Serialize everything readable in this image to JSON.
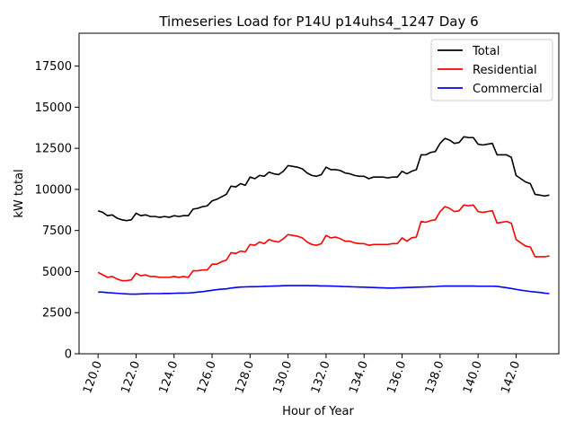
{
  "chart_data": {
    "type": "line",
    "title": "Timeseries Load for P14U p14uhs4_1247  Day 6",
    "xlabel": "Hour of Year",
    "ylabel": "kW total",
    "xlim": [
      119.0,
      144.25
    ],
    "ylim": [
      0,
      19500
    ],
    "xticks": [
      120,
      122,
      124,
      126,
      128,
      130,
      132,
      134,
      136,
      138,
      140,
      142
    ],
    "xtick_labels": [
      "120.0",
      "122.0",
      "124.0",
      "126.0",
      "128.0",
      "130.0",
      "132.0",
      "134.0",
      "136.0",
      "138.0",
      "140.0",
      "142.0"
    ],
    "yticks": [
      0,
      2500,
      5000,
      7500,
      10000,
      12500,
      15000,
      17500
    ],
    "ytick_labels": [
      "0",
      "2500",
      "5000",
      "7500",
      "10000",
      "12500",
      "15000",
      "17500"
    ],
    "legend_position": "top-right",
    "series": [
      {
        "name": "Total",
        "color": "#000000",
        "x": [
          120.0,
          120.25,
          120.5,
          120.75,
          121.0,
          121.25,
          121.5,
          121.75,
          122.0,
          122.25,
          122.5,
          122.75,
          123.0,
          123.25,
          123.5,
          123.75,
          124.0,
          124.25,
          124.5,
          124.75,
          125.0,
          125.25,
          125.5,
          125.75,
          126.0,
          126.25,
          126.5,
          126.75,
          127.0,
          127.25,
          127.5,
          127.75,
          128.0,
          128.25,
          128.5,
          128.75,
          129.0,
          129.25,
          129.5,
          129.75,
          130.0,
          130.25,
          130.5,
          130.75,
          131.0,
          131.25,
          131.5,
          131.75,
          132.0,
          132.25,
          132.5,
          132.75,
          133.0,
          133.25,
          133.5,
          133.75,
          134.0,
          134.25,
          134.5,
          134.75,
          135.0,
          135.25,
          135.5,
          135.75,
          136.0,
          136.25,
          136.5,
          136.75,
          137.0,
          137.25,
          137.5,
          137.75,
          138.0,
          138.25,
          138.5,
          138.75,
          139.0,
          139.25,
          139.5,
          139.75,
          140.0,
          140.25,
          140.5,
          140.75,
          141.0,
          141.25,
          141.5,
          141.75,
          142.0,
          142.25,
          142.5,
          142.75,
          143.0,
          143.25,
          143.5,
          143.75
        ],
        "values": [
          8700,
          8600,
          8400,
          8450,
          8250,
          8150,
          8100,
          8150,
          8550,
          8400,
          8450,
          8350,
          8350,
          8300,
          8350,
          8300,
          8400,
          8350,
          8400,
          8400,
          8800,
          8850,
          8950,
          9000,
          9300,
          9400,
          9550,
          9700,
          10200,
          10150,
          10350,
          10250,
          10750,
          10650,
          10850,
          10800,
          11050,
          10950,
          10900,
          11100,
          11450,
          11400,
          11350,
          11250,
          11000,
          10850,
          10800,
          10900,
          11350,
          11200,
          11200,
          11150,
          11000,
          10950,
          10850,
          10800,
          10800,
          10650,
          10750,
          10750,
          10750,
          10700,
          10750,
          10750,
          11100,
          10950,
          11100,
          11200,
          12100,
          12100,
          12250,
          12300,
          12800,
          13100,
          13000,
          12800,
          12850,
          13200,
          13150,
          13150,
          12750,
          12700,
          12750,
          12800,
          12100,
          12100,
          12100,
          11950,
          10850,
          10650,
          10450,
          10350,
          9700,
          9650,
          9600,
          9650
        ]
      },
      {
        "name": "Residential",
        "color": "#ff0000",
        "x": [
          120.0,
          120.25,
          120.5,
          120.75,
          121.0,
          121.25,
          121.5,
          121.75,
          122.0,
          122.25,
          122.5,
          122.75,
          123.0,
          123.25,
          123.5,
          123.75,
          124.0,
          124.25,
          124.5,
          124.75,
          125.0,
          125.25,
          125.5,
          125.75,
          126.0,
          126.25,
          126.5,
          126.75,
          127.0,
          127.25,
          127.5,
          127.75,
          128.0,
          128.25,
          128.5,
          128.75,
          129.0,
          129.25,
          129.5,
          129.75,
          130.0,
          130.25,
          130.5,
          130.75,
          131.0,
          131.25,
          131.5,
          131.75,
          132.0,
          132.25,
          132.5,
          132.75,
          133.0,
          133.25,
          133.5,
          133.75,
          134.0,
          134.25,
          134.5,
          134.75,
          135.0,
          135.25,
          135.5,
          135.75,
          136.0,
          136.25,
          136.5,
          136.75,
          137.0,
          137.25,
          137.5,
          137.75,
          138.0,
          138.25,
          138.5,
          138.75,
          139.0,
          139.25,
          139.5,
          139.75,
          140.0,
          140.25,
          140.5,
          140.75,
          141.0,
          141.25,
          141.5,
          141.75,
          142.0,
          142.25,
          142.5,
          142.75,
          143.0,
          143.25,
          143.5,
          143.75
        ],
        "values": [
          4950,
          4800,
          4650,
          4700,
          4550,
          4450,
          4450,
          4500,
          4900,
          4750,
          4800,
          4700,
          4700,
          4650,
          4650,
          4650,
          4700,
          4650,
          4700,
          4650,
          5050,
          5050,
          5100,
          5100,
          5450,
          5450,
          5600,
          5700,
          6150,
          6100,
          6250,
          6200,
          6650,
          6600,
          6800,
          6700,
          6950,
          6850,
          6800,
          7000,
          7250,
          7200,
          7150,
          7050,
          6800,
          6650,
          6600,
          6700,
          7200,
          7050,
          7100,
          7000,
          6850,
          6850,
          6750,
          6700,
          6700,
          6600,
          6650,
          6650,
          6650,
          6650,
          6700,
          6700,
          7050,
          6850,
          7050,
          7100,
          8050,
          8000,
          8100,
          8150,
          8650,
          8950,
          8850,
          8650,
          8700,
          9050,
          9000,
          9050,
          8650,
          8600,
          8650,
          8700,
          7950,
          8000,
          8050,
          7950,
          6950,
          6750,
          6550,
          6500,
          5900,
          5900,
          5900,
          5950
        ]
      },
      {
        "name": "Commercial",
        "color": "#0000ff",
        "x": [
          120.0,
          120.25,
          120.5,
          120.75,
          121.0,
          121.25,
          121.5,
          121.75,
          122.0,
          122.25,
          122.5,
          122.75,
          123.0,
          123.25,
          123.5,
          123.75,
          124.0,
          124.25,
          124.5,
          124.75,
          125.0,
          125.25,
          125.5,
          125.75,
          126.0,
          126.25,
          126.5,
          126.75,
          127.0,
          127.25,
          127.5,
          127.75,
          128.0,
          128.25,
          128.5,
          128.75,
          129.0,
          129.25,
          129.5,
          129.75,
          130.0,
          130.25,
          130.5,
          130.75,
          131.0,
          131.25,
          131.5,
          131.75,
          132.0,
          132.25,
          132.5,
          132.75,
          133.0,
          133.25,
          133.5,
          133.75,
          134.0,
          134.25,
          134.5,
          134.75,
          135.0,
          135.25,
          135.5,
          135.75,
          136.0,
          136.25,
          136.5,
          136.75,
          137.0,
          137.25,
          137.5,
          137.75,
          138.0,
          138.25,
          138.5,
          138.75,
          139.0,
          139.25,
          139.5,
          139.75,
          140.0,
          140.25,
          140.5,
          140.75,
          141.0,
          141.25,
          141.5,
          141.75,
          142.0,
          142.25,
          142.5,
          142.75,
          143.0,
          143.25,
          143.5,
          143.75
        ],
        "values": [
          3750,
          3750,
          3720,
          3700,
          3680,
          3660,
          3640,
          3630,
          3630,
          3640,
          3650,
          3660,
          3660,
          3660,
          3670,
          3670,
          3680,
          3690,
          3690,
          3700,
          3720,
          3750,
          3780,
          3820,
          3860,
          3900,
          3930,
          3950,
          4000,
          4030,
          4060,
          4070,
          4080,
          4080,
          4090,
          4100,
          4110,
          4120,
          4130,
          4140,
          4150,
          4150,
          4150,
          4150,
          4150,
          4140,
          4140,
          4130,
          4130,
          4120,
          4110,
          4100,
          4090,
          4080,
          4070,
          4060,
          4050,
          4040,
          4030,
          4020,
          4010,
          4000,
          4000,
          4010,
          4020,
          4030,
          4040,
          4050,
          4060,
          4070,
          4080,
          4090,
          4110,
          4120,
          4120,
          4120,
          4120,
          4120,
          4120,
          4120,
          4110,
          4110,
          4110,
          4110,
          4100,
          4060,
          4020,
          3970,
          3920,
          3870,
          3830,
          3790,
          3760,
          3730,
          3690,
          3660
        ]
      }
    ]
  }
}
